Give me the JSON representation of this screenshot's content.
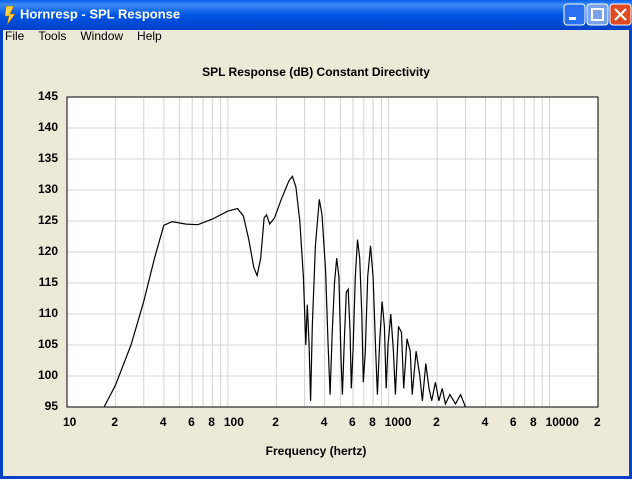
{
  "window": {
    "title": "Hornresp - SPL Response",
    "menu": [
      "File",
      "Tools",
      "Window",
      "Help"
    ]
  },
  "chart_data": {
    "type": "line",
    "title": "SPL Response (dB)   Constant Directivity",
    "x_label": "Frequency (hertz)",
    "x_log": true,
    "grid": true,
    "xlim": [
      10,
      20000
    ],
    "ylim": [
      95,
      145
    ],
    "xticks": [
      10,
      {
        "value": 20,
        "label": "2"
      },
      {
        "value": 40,
        "label": "4"
      },
      {
        "value": 60,
        "label": "6"
      },
      {
        "value": 80,
        "label": "8"
      },
      100,
      {
        "value": 200,
        "label": "2"
      },
      {
        "value": 400,
        "label": "4"
      },
      {
        "value": 600,
        "label": "6"
      },
      {
        "value": 800,
        "label": "8"
      },
      1000,
      {
        "value": 2000,
        "label": "2"
      },
      {
        "value": 4000,
        "label": "4"
      },
      {
        "value": 6000,
        "label": "6"
      },
      {
        "value": 8000,
        "label": "8"
      },
      10000,
      {
        "value": 20000,
        "label": "2"
      }
    ],
    "xminorticks": [
      30,
      50,
      70,
      90,
      300,
      500,
      700,
      900,
      3000,
      5000,
      7000,
      9000
    ],
    "yticks": [
      95,
      100,
      105,
      110,
      115,
      120,
      125,
      130,
      135,
      140,
      145
    ],
    "x": [
      17,
      20,
      25,
      30,
      35,
      40,
      45,
      55,
      65,
      80,
      100,
      115,
      125,
      135,
      145,
      152,
      160,
      168,
      174,
      182,
      195,
      215,
      240,
      252,
      265,
      280,
      295,
      305,
      312,
      320,
      327,
      335,
      350,
      370,
      385,
      405,
      420,
      432,
      445,
      460,
      475,
      490,
      505,
      515,
      530,
      545,
      560,
      575,
      585,
      600,
      620,
      640,
      660,
      680,
      695,
      715,
      740,
      770,
      800,
      830,
      850,
      880,
      910,
      940,
      965,
      990,
      1030,
      1070,
      1100,
      1150,
      1200,
      1240,
      1300,
      1360,
      1400,
      1480,
      1560,
      1620,
      1700,
      1780,
      1850,
      1950,
      2050,
      2150,
      2250,
      2400,
      2600,
      2800,
      3000
    ],
    "series": [
      {
        "name": "SPL",
        "color": "#000000",
        "values": [
          95,
          98.5,
          105,
          112,
          119,
          124.3,
          124.9,
          124.5,
          124.4,
          125.3,
          126.6,
          127,
          125.8,
          122,
          117.5,
          116.2,
          119,
          125.5,
          126,
          124.5,
          125.5,
          128.5,
          131.5,
          132.2,
          130.5,
          125,
          116,
          105,
          111.5,
          105,
          96,
          108,
          121,
          128.5,
          126,
          117,
          105,
          97,
          107,
          115,
          119,
          116,
          103,
          97,
          106,
          113.5,
          114,
          107,
          98,
          104,
          116,
          122,
          119,
          110,
          99,
          104,
          116,
          121,
          116,
          104,
          97,
          106,
          112,
          108,
          98,
          105,
          110,
          104,
          97,
          108,
          107,
          98,
          106,
          104,
          97,
          104,
          100,
          96,
          102,
          98,
          96,
          99,
          96,
          98,
          95.5,
          97,
          95.5,
          97,
          95
        ]
      }
    ]
  }
}
